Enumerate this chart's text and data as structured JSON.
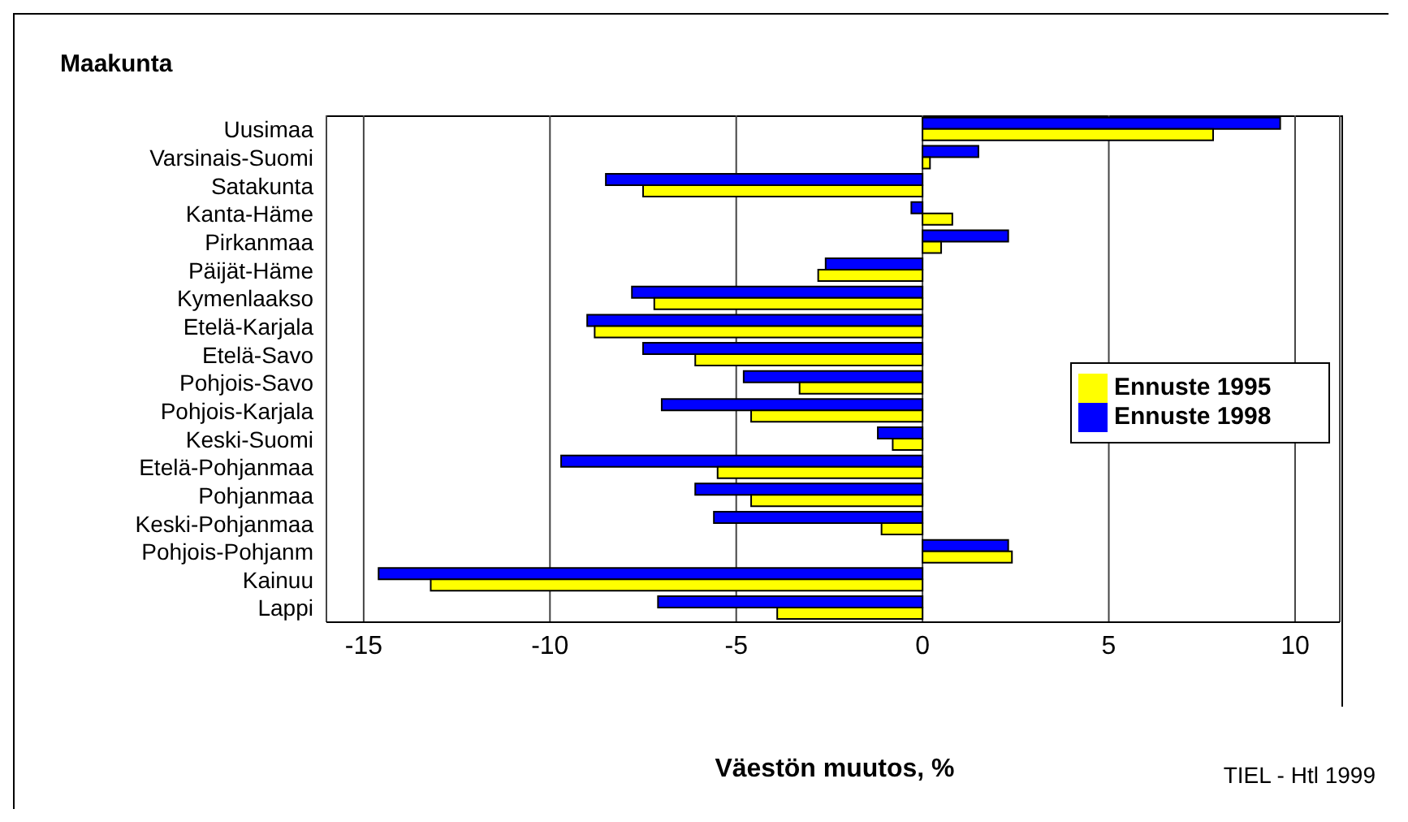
{
  "chart_data": {
    "type": "bar",
    "orientation": "horizontal",
    "title": "Maakunta",
    "xlabel": "Väestön muutos, %",
    "annotations": [
      "TIEL - Htl 1999"
    ],
    "categories": [
      "Uusimaa",
      "Varsinais-Suomi",
      "Satakunta",
      "Kanta-Häme",
      "Pirkanmaa",
      "Päijät-Häme",
      "Kymenlaakso",
      "Etelä-Karjala",
      "Etelä-Savo",
      "Pohjois-Savo",
      "Pohjois-Karjala",
      "Keski-Suomi",
      "Etelä-Pohjanmaa",
      "Pohjanmaa",
      "Keski-Pohjanmaa",
      "Pohjois-Pohjanm",
      "Kainuu",
      "Lappi"
    ],
    "series": [
      {
        "name": "Ennuste 1998",
        "color": "#0000ff",
        "values": [
          9.6,
          1.5,
          -8.5,
          -0.3,
          2.3,
          -2.6,
          -7.8,
          -9.0,
          -7.5,
          -4.8,
          -7.0,
          -1.2,
          -9.7,
          -6.1,
          -5.6,
          2.3,
          -14.6,
          -7.1
        ]
      },
      {
        "name": "Ennuste 1995",
        "color": "#ffff00",
        "values": [
          7.8,
          0.2,
          -7.5,
          0.8,
          0.5,
          -2.8,
          -7.2,
          -8.8,
          -6.1,
          -3.3,
          -4.6,
          -0.8,
          -5.5,
          -4.6,
          -1.1,
          2.4,
          -13.2,
          -3.9
        ]
      }
    ],
    "xlim": [
      -16,
      11.2
    ],
    "xticks": [
      -15,
      -10,
      -5,
      0,
      5,
      10
    ],
    "grid": "x",
    "legend": "right"
  }
}
